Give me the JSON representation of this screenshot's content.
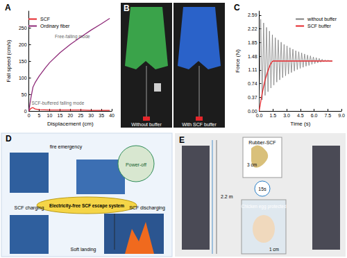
{
  "chart_data": [
    {
      "type": "line",
      "title": "A",
      "x_label": "Displacement (cm)",
      "y_label": "Fall speed (cm/s)",
      "xlim": [
        0,
        40
      ],
      "xticks": [
        0,
        5,
        10,
        15,
        20,
        25,
        30,
        35,
        40
      ],
      "ylim": [
        0,
        300
      ],
      "yticks": [
        0,
        50,
        100,
        150,
        200,
        250
      ],
      "grid": false,
      "legend": "top-left",
      "series": [
        {
          "name": "SCF",
          "color": "#e5262b",
          "x": [
            0,
            1,
            2,
            3,
            5,
            10,
            15,
            20,
            25,
            30,
            35,
            39
          ],
          "values": [
            0,
            8,
            10,
            6,
            4,
            3,
            3,
            3,
            3,
            2,
            2,
            2
          ]
        },
        {
          "name": "Ordinary fiber",
          "color": "#8e2a78",
          "x": [
            0,
            1,
            2,
            3,
            5,
            8,
            10,
            15,
            20,
            25,
            30,
            35,
            39
          ],
          "values": [
            0,
            40,
            72,
            85,
            105,
            130,
            145,
            175,
            200,
            222,
            243,
            262,
            278
          ]
        }
      ],
      "annotations": [
        {
          "text": "Free-falling mode",
          "x": 21,
          "y": 225
        },
        {
          "text": "SCF-buffered falling mode",
          "x": 14,
          "y": 24
        }
      ]
    },
    {
      "type": "line",
      "title": "C",
      "x_label": "Time (s)",
      "y_label": "Force (N)",
      "xlim": [
        0,
        9
      ],
      "xticks": [
        {
          "value": 0,
          "label": "0.0"
        },
        1.5,
        {
          "value": 3,
          "label": "3.0"
        },
        4.5,
        {
          "value": 6,
          "label": "6.0"
        },
        7.5,
        {
          "value": 9,
          "label": "9.0"
        }
      ],
      "ylim": [
        0,
        2.7
      ],
      "yticks": [
        {
          "value": 0,
          "label": "0.00"
        },
        0.37,
        0.74,
        1.11,
        1.48,
        1.85,
        2.22,
        2.59
      ],
      "grid": false,
      "legend": "top-right",
      "series": [
        {
          "name": "without buffer",
          "color": "#7f7f7f",
          "x": [
            0,
            0.16,
            0.32,
            0.48,
            0.64,
            0.8,
            0.96,
            1.12,
            1.28,
            1.44,
            1.6,
            1.76,
            1.92,
            2.08,
            2.24,
            2.4,
            2.56,
            2.72,
            2.88,
            3.04,
            3.2,
            3.36,
            3.52,
            3.68,
            3.84,
            4.0,
            4.16,
            4.32,
            4.48,
            4.64,
            4.8,
            4.96,
            5.12,
            5.28,
            5.44,
            5.6,
            5.76,
            5.92,
            6.08,
            6.24,
            6.4,
            6.56,
            6.72,
            6.88,
            7.04,
            7.2,
            7.36,
            7.52,
            7.68,
            8.0
          ],
          "values": [
            0,
            2.48,
            0.3,
            2.38,
            0.42,
            2.26,
            0.52,
            2.16,
            0.62,
            2.06,
            0.7,
            1.98,
            0.78,
            1.92,
            0.84,
            1.86,
            0.9,
            1.8,
            0.95,
            1.76,
            1.0,
            1.71,
            1.04,
            1.67,
            1.08,
            1.63,
            1.12,
            1.6,
            1.15,
            1.57,
            1.18,
            1.54,
            1.21,
            1.51,
            1.23,
            1.49,
            1.26,
            1.46,
            1.28,
            1.44,
            1.3,
            1.42,
            1.32,
            1.4,
            1.33,
            1.38,
            1.34,
            1.37,
            1.35,
            1.35
          ]
        },
        {
          "name": "SCF buffer",
          "color": "#e5262b",
          "x": [
            0,
            0.3,
            0.6,
            0.9,
            1.2,
            1.4,
            1.5,
            8.0
          ],
          "values": [
            0,
            0.45,
            0.8,
            1.05,
            1.25,
            1.33,
            1.35,
            1.35
          ]
        }
      ]
    }
  ],
  "panels": [
    {
      "label": "B",
      "texts": [
        "Without buffer",
        "With SCF buffer"
      ]
    },
    {
      "label": "D",
      "texts": [
        "fire emergency",
        "Power-off",
        "SCF charging",
        "Electricity-free SCF escape system",
        "SCF discharging",
        "Soft landing"
      ]
    },
    {
      "label": "E",
      "texts": [
        "Rubber-SCF",
        "3 cm",
        "2.2 m",
        "15s",
        "Chicken egg protected",
        "1 cm"
      ]
    }
  ]
}
